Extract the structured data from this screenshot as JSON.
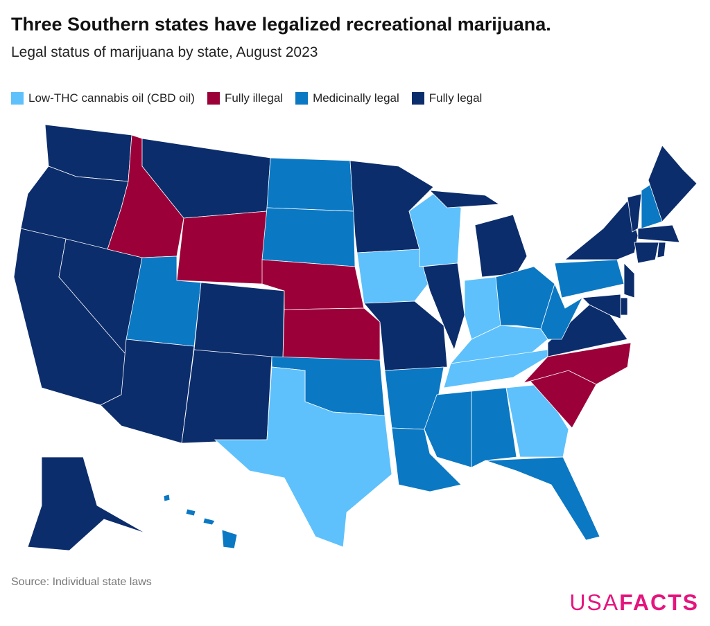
{
  "header": {
    "title": "Three Southern states have legalized recreational marijuana.",
    "subtitle": "Legal status of marijuana by state, August 2023"
  },
  "legend": [
    {
      "label": "Low-THC cannabis oil (CBD oil)",
      "color": "#5ec1fb"
    },
    {
      "label": "Fully illegal",
      "color": "#9c0039"
    },
    {
      "label": "Medicinally legal",
      "color": "#0b78c3"
    },
    {
      "label": "Fully legal",
      "color": "#0c2d6c"
    }
  ],
  "footer": {
    "source": "Source: Individual state laws",
    "logo_left": "USA",
    "logo_right": "FACTS"
  }
}
